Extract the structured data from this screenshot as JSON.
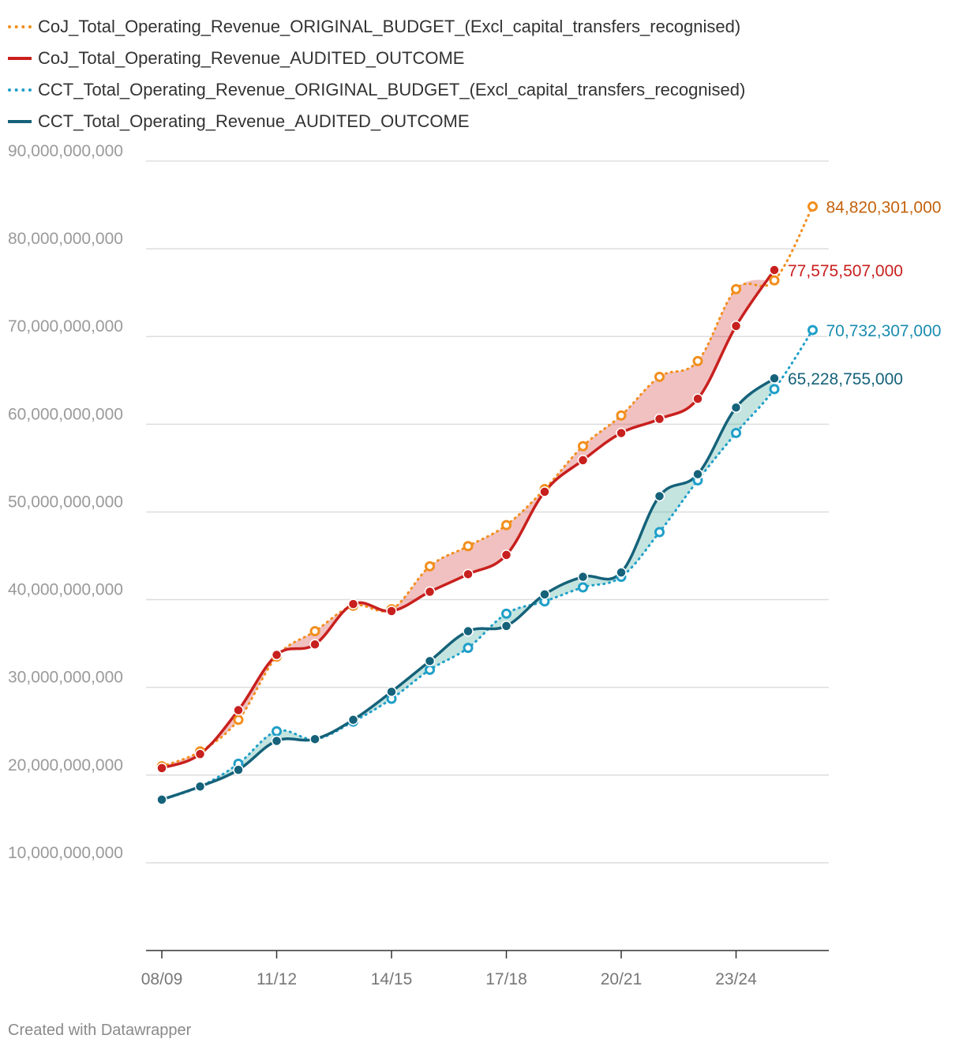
{
  "chart_data": {
    "type": "line",
    "x_categories": [
      "08/09",
      "09/10",
      "10/11",
      "11/12",
      "12/13",
      "13/14",
      "14/15",
      "15/16",
      "16/17",
      "17/18",
      "18/19",
      "19/20",
      "20/21",
      "21/22",
      "22/23",
      "23/24",
      "24/25",
      "25/26"
    ],
    "x_tick_labels": [
      "08/09",
      "11/12",
      "14/15",
      "17/18",
      "20/21",
      "23/24"
    ],
    "y_ticks": [
      "90,000,000,000",
      "80,000,000,000",
      "70,000,000,000",
      "60,000,000,000",
      "50,000,000,000",
      "40,000,000,000",
      "30,000,000,000",
      "20,000,000,000",
      "10,000,000,000"
    ],
    "y_tick_values": [
      90000000000,
      80000000000,
      70000000000,
      60000000000,
      50000000000,
      40000000000,
      30000000000,
      20000000000,
      10000000000
    ],
    "ylim": [
      0,
      90000000000
    ],
    "series": [
      {
        "key": "coj_budget",
        "name": "CoJ_Total_Operating_Revenue_ORIGINAL_BUDGET_(Excl_capital_transfers_recognised)",
        "color": "#f28e1c",
        "label_color": "#c4620c",
        "style": "dotted",
        "end_label": "84,820,301,000",
        "values": [
          21000000000,
          22700000000,
          26300000000,
          33500000000,
          36400000000,
          39300000000,
          38900000000,
          43800000000,
          46100000000,
          48500000000,
          52600000000,
          57500000000,
          61000000000,
          65400000000,
          67200000000,
          75400000000,
          76400000000,
          84820301000
        ]
      },
      {
        "key": "coj_audited",
        "name": "CoJ_Total_Operating_Revenue_AUDITED_OUTCOME",
        "color": "#c8201e",
        "label_color": "#c8201e",
        "style": "solid",
        "end_label": "77,575,507,000",
        "values": [
          20800000000,
          22400000000,
          27400000000,
          33700000000,
          34900000000,
          39500000000,
          38700000000,
          40900000000,
          42900000000,
          45100000000,
          52300000000,
          55900000000,
          59000000000,
          60600000000,
          62900000000,
          71200000000,
          77575507000
        ]
      },
      {
        "key": "cct_budget",
        "name": "CCT_Total_Operating_Revenue_ORIGINAL_BUDGET_(Excl_capital_transfers_recognised)",
        "color": "#1f9fc8",
        "label_color": "#1a8cb0",
        "style": "dotted",
        "end_label": "70,732,307,000",
        "values": [
          17200000000,
          18700000000,
          21300000000,
          25000000000,
          24100000000,
          26100000000,
          28700000000,
          32000000000,
          34500000000,
          38400000000,
          39800000000,
          41400000000,
          42600000000,
          47700000000,
          53600000000,
          59000000000,
          64000000000,
          70732307000
        ]
      },
      {
        "key": "cct_audited",
        "name": "CCT_Total_Operating_Revenue_AUDITED_OUTCOME",
        "color": "#15627a",
        "label_color": "#15627a",
        "style": "solid",
        "end_label": "65,228,755,000",
        "values": [
          17200000000,
          18700000000,
          20600000000,
          23900000000,
          24100000000,
          26300000000,
          29500000000,
          33000000000,
          36400000000,
          37000000000,
          40600000000,
          42600000000,
          43100000000,
          51800000000,
          54300000000,
          61900000000,
          65228755000
        ]
      }
    ],
    "fills": [
      {
        "upper": "coj_budget",
        "lower": "coj_audited",
        "color": "#c8201e"
      },
      {
        "upper": "cct_audited",
        "lower": "cct_budget",
        "color": "#2a9d8f"
      }
    ]
  },
  "footer": {
    "text": "Created with Datawrapper"
  }
}
